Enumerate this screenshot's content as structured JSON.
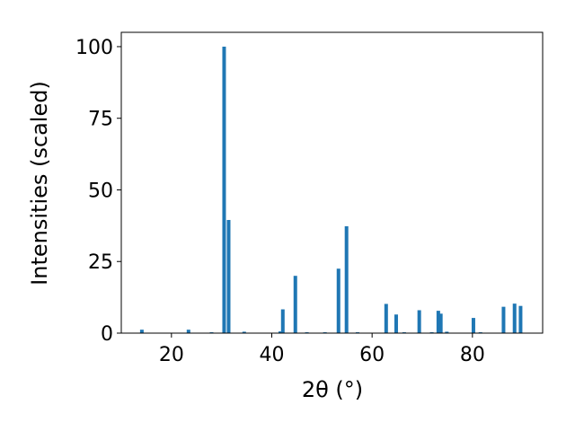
{
  "chart_data": {
    "type": "bar",
    "x_label": "2θ (°)",
    "y_label": "Intensities (scaled)",
    "x": [
      14.1,
      23.4,
      28.0,
      30.5,
      31.4,
      34.5,
      41.7,
      42.2,
      44.7,
      47.0,
      50.6,
      53.3,
      54.9,
      57.1,
      62.8,
      64.8,
      66.4,
      69.4,
      71.9,
      73.2,
      73.7,
      74.9,
      80.2,
      81.6,
      86.2,
      88.4,
      89.6
    ],
    "values": [
      1.2,
      1.2,
      0.3,
      100,
      39.5,
      0.5,
      0.6,
      8.3,
      20,
      0.3,
      0.3,
      22.5,
      37.3,
      0.3,
      10.2,
      6.5,
      0.3,
      8,
      0.3,
      7.8,
      6.8,
      0.5,
      5.3,
      0.3,
      9.2,
      10.3,
      9.5
    ],
    "color": "#1f77b4",
    "xlim": [
      10,
      94
    ],
    "xticks": [
      20,
      40,
      60,
      80
    ],
    "ylim": [
      0,
      105
    ],
    "yticks": [
      0,
      25,
      50,
      75,
      100
    ]
  }
}
